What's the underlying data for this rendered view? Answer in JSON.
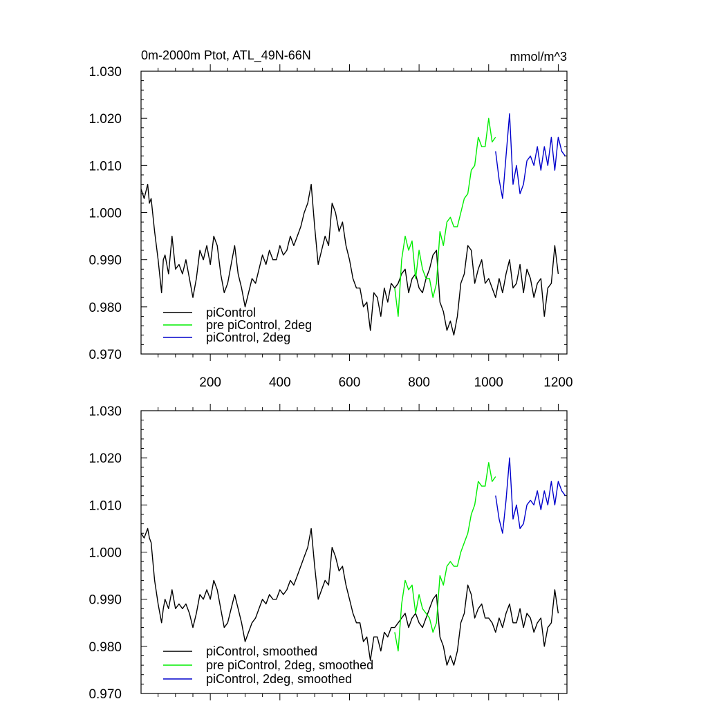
{
  "chart_data": [
    {
      "type": "line",
      "title": "0m-2000m Ptot, ATL_49N-66N",
      "units": "mmol/m^3",
      "xlabel": "",
      "ylabel": "",
      "xlim": [
        1,
        1225
      ],
      "ylim": [
        0.97,
        1.03
      ],
      "xticks": [
        200,
        400,
        600,
        800,
        1000,
        1200
      ],
      "xtick_labels": [
        "200",
        "400",
        "600",
        "800",
        "1000",
        "1200"
      ],
      "yticks": [
        0.97,
        0.98,
        0.99,
        1.0,
        1.01,
        1.02,
        1.03
      ],
      "ytick_labels": [
        "0.970",
        "0.980",
        "0.990",
        "1.000",
        "1.010",
        "1.020",
        "1.030"
      ],
      "grid": false,
      "legend_position": "bottom-left",
      "series": [
        {
          "name": "piControl",
          "color": "#000000",
          "x": [
            1,
            10,
            20,
            25,
            30,
            40,
            50,
            60,
            65,
            70,
            80,
            90,
            100,
            110,
            120,
            130,
            140,
            150,
            160,
            170,
            180,
            190,
            200,
            210,
            220,
            230,
            240,
            250,
            260,
            270,
            280,
            290,
            300,
            310,
            320,
            330,
            340,
            350,
            360,
            370,
            380,
            390,
            400,
            410,
            420,
            430,
            440,
            450,
            460,
            470,
            480,
            490,
            500,
            510,
            520,
            530,
            540,
            550,
            560,
            570,
            580,
            590,
            600,
            610,
            620,
            630,
            640,
            650,
            660,
            670,
            680,
            690,
            700,
            710,
            720,
            730,
            740,
            750,
            760,
            770,
            780,
            790,
            800,
            810,
            820,
            830,
            840,
            850,
            860,
            870,
            880,
            890,
            900,
            910,
            920,
            930,
            940,
            950,
            960,
            970,
            980,
            990,
            1000,
            1010,
            1020,
            1030,
            1040,
            1050,
            1060,
            1070,
            1080,
            1090,
            1100,
            1110,
            1120,
            1130,
            1140,
            1150,
            1160,
            1170,
            1180,
            1190,
            1200
          ],
          "y": [
            1.005,
            1.003,
            1.006,
            1.002,
            1.003,
            0.996,
            0.99,
            0.983,
            0.99,
            0.991,
            0.987,
            0.995,
            0.988,
            0.989,
            0.987,
            0.99,
            0.986,
            0.982,
            0.986,
            0.992,
            0.99,
            0.993,
            0.989,
            0.995,
            0.993,
            0.987,
            0.983,
            0.985,
            0.989,
            0.993,
            0.987,
            0.984,
            0.98,
            0.983,
            0.986,
            0.985,
            0.988,
            0.991,
            0.989,
            0.992,
            0.99,
            0.99,
            0.993,
            0.991,
            0.992,
            0.995,
            0.993,
            0.995,
            0.997,
            1.0,
            1.002,
            1.006,
            0.997,
            0.989,
            0.992,
            0.995,
            0.993,
            1.002,
            1.0,
            0.996,
            0.998,
            0.993,
            0.99,
            0.986,
            0.984,
            0.984,
            0.98,
            0.981,
            0.975,
            0.983,
            0.982,
            0.978,
            0.984,
            0.981,
            0.985,
            0.984,
            0.985,
            0.987,
            0.988,
            0.983,
            0.986,
            0.987,
            0.984,
            0.983,
            0.986,
            0.988,
            0.991,
            0.992,
            0.981,
            0.979,
            0.975,
            0.977,
            0.974,
            0.978,
            0.985,
            0.987,
            0.993,
            0.992,
            0.985,
            0.988,
            0.99,
            0.985,
            0.986,
            0.984,
            0.982,
            0.986,
            0.983,
            0.987,
            0.99,
            0.984,
            0.985,
            0.989,
            0.983,
            0.988,
            0.986,
            0.982,
            0.985,
            0.986,
            0.978,
            0.984,
            0.985,
            0.993,
            0.987
          ]
        },
        {
          "name": "pre piControl, 2deg",
          "color": "#00ee00",
          "x": [
            730,
            740,
            750,
            760,
            770,
            780,
            790,
            800,
            810,
            820,
            830,
            840,
            850,
            860,
            870,
            880,
            890,
            900,
            910,
            920,
            930,
            940,
            950,
            960,
            970,
            980,
            990,
            1000,
            1010,
            1020
          ],
          "y": [
            0.984,
            0.978,
            0.99,
            0.995,
            0.992,
            0.994,
            0.986,
            0.992,
            0.988,
            0.986,
            0.986,
            0.982,
            0.985,
            0.996,
            0.993,
            0.998,
            0.999,
            0.997,
            0.997,
            1.0,
            1.003,
            1.004,
            1.009,
            1.01,
            1.016,
            1.014,
            1.014,
            1.02,
            1.015,
            1.016
          ]
        },
        {
          "name": "piControl, 2deg",
          "color": "#0000cc",
          "x": [
            1020,
            1030,
            1040,
            1050,
            1060,
            1070,
            1080,
            1090,
            1100,
            1110,
            1120,
            1130,
            1140,
            1150,
            1160,
            1170,
            1180,
            1190,
            1200,
            1210,
            1220
          ],
          "y": [
            1.013,
            1.007,
            1.003,
            1.012,
            1.021,
            1.006,
            1.01,
            1.004,
            1.006,
            1.011,
            1.012,
            1.01,
            1.014,
            1.009,
            1.014,
            1.01,
            1.016,
            1.009,
            1.016,
            1.013,
            1.012
          ]
        }
      ]
    },
    {
      "type": "line",
      "title": "",
      "units": "",
      "xlabel": "",
      "ylabel": "",
      "xlim": [
        1,
        1225
      ],
      "ylim": [
        0.97,
        1.03
      ],
      "xticks": [
        200,
        400,
        600,
        800,
        1000,
        1200
      ],
      "xtick_labels": [],
      "yticks": [
        0.97,
        0.98,
        0.99,
        1.0,
        1.01,
        1.02,
        1.03
      ],
      "ytick_labels": [
        "0.970",
        "0.980",
        "0.990",
        "1.000",
        "1.010",
        "1.020",
        "1.030"
      ],
      "grid": false,
      "legend_position": "bottom-left",
      "series": [
        {
          "name": "piControl, smoothed",
          "color": "#000000",
          "x": [
            1,
            10,
            20,
            25,
            30,
            40,
            50,
            60,
            65,
            70,
            80,
            90,
            100,
            110,
            120,
            130,
            140,
            150,
            160,
            170,
            180,
            190,
            200,
            210,
            220,
            230,
            240,
            250,
            260,
            270,
            280,
            290,
            300,
            310,
            320,
            330,
            340,
            350,
            360,
            370,
            380,
            390,
            400,
            410,
            420,
            430,
            440,
            450,
            460,
            470,
            480,
            490,
            500,
            510,
            520,
            530,
            540,
            550,
            560,
            570,
            580,
            590,
            600,
            610,
            620,
            630,
            640,
            650,
            660,
            670,
            680,
            690,
            700,
            710,
            720,
            730,
            740,
            750,
            760,
            770,
            780,
            790,
            800,
            810,
            820,
            830,
            840,
            850,
            860,
            870,
            880,
            890,
            900,
            910,
            920,
            930,
            940,
            950,
            960,
            970,
            980,
            990,
            1000,
            1010,
            1020,
            1030,
            1040,
            1050,
            1060,
            1070,
            1080,
            1090,
            1100,
            1110,
            1120,
            1130,
            1140,
            1150,
            1160,
            1170,
            1180,
            1190,
            1200
          ],
          "y": [
            1.004,
            1.003,
            1.005,
            1.003,
            1.002,
            0.994,
            0.989,
            0.985,
            0.988,
            0.99,
            0.988,
            0.992,
            0.988,
            0.989,
            0.988,
            0.989,
            0.987,
            0.984,
            0.987,
            0.991,
            0.99,
            0.992,
            0.99,
            0.994,
            0.992,
            0.988,
            0.984,
            0.985,
            0.988,
            0.991,
            0.988,
            0.985,
            0.981,
            0.983,
            0.985,
            0.986,
            0.988,
            0.99,
            0.989,
            0.991,
            0.99,
            0.99,
            0.992,
            0.991,
            0.992,
            0.994,
            0.993,
            0.995,
            0.997,
            0.999,
            1.001,
            1.005,
            0.997,
            0.99,
            0.992,
            0.994,
            0.993,
            1.001,
            0.999,
            0.996,
            0.997,
            0.993,
            0.99,
            0.987,
            0.985,
            0.985,
            0.981,
            0.982,
            0.977,
            0.982,
            0.982,
            0.979,
            0.983,
            0.982,
            0.984,
            0.984,
            0.985,
            0.986,
            0.987,
            0.984,
            0.986,
            0.987,
            0.985,
            0.984,
            0.986,
            0.988,
            0.99,
            0.991,
            0.982,
            0.98,
            0.976,
            0.978,
            0.976,
            0.979,
            0.985,
            0.987,
            0.993,
            0.991,
            0.986,
            0.988,
            0.989,
            0.986,
            0.986,
            0.985,
            0.983,
            0.986,
            0.984,
            0.987,
            0.989,
            0.985,
            0.985,
            0.988,
            0.984,
            0.987,
            0.986,
            0.983,
            0.985,
            0.986,
            0.98,
            0.984,
            0.985,
            0.992,
            0.987
          ]
        },
        {
          "name": "pre piControl, 2deg, smoothed",
          "color": "#00ee00",
          "x": [
            730,
            740,
            750,
            760,
            770,
            780,
            790,
            800,
            810,
            820,
            830,
            840,
            850,
            860,
            870,
            880,
            890,
            900,
            910,
            920,
            930,
            940,
            950,
            960,
            970,
            980,
            990,
            1000,
            1010,
            1020
          ],
          "y": [
            0.983,
            0.979,
            0.989,
            0.994,
            0.992,
            0.993,
            0.987,
            0.991,
            0.988,
            0.987,
            0.986,
            0.983,
            0.985,
            0.995,
            0.993,
            0.997,
            0.998,
            0.997,
            0.997,
            1.0,
            1.002,
            1.004,
            1.008,
            1.01,
            1.015,
            1.014,
            1.014,
            1.019,
            1.015,
            1.016
          ]
        },
        {
          "name": "piControl, 2deg, smoothed",
          "color": "#0000cc",
          "x": [
            1020,
            1030,
            1040,
            1050,
            1060,
            1070,
            1080,
            1090,
            1100,
            1110,
            1120,
            1130,
            1140,
            1150,
            1160,
            1170,
            1180,
            1190,
            1200,
            1210,
            1220
          ],
          "y": [
            1.012,
            1.007,
            1.004,
            1.011,
            1.02,
            1.007,
            1.01,
            1.005,
            1.006,
            1.01,
            1.011,
            1.01,
            1.013,
            1.009,
            1.013,
            1.01,
            1.015,
            1.01,
            1.015,
            1.013,
            1.012
          ]
        }
      ]
    }
  ]
}
